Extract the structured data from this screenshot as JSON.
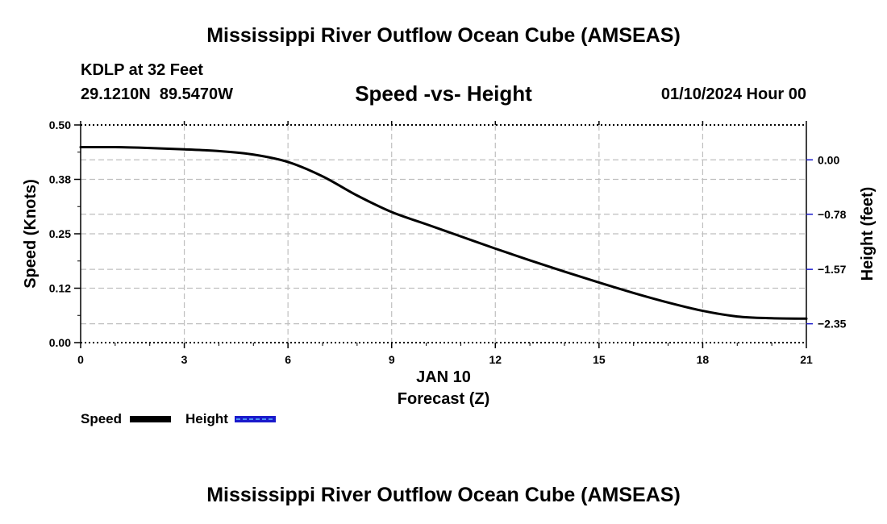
{
  "header": {
    "title": "Mississippi River Outflow Ocean Cube (AMSEAS)",
    "station": "KDLP at 32 Feet",
    "coords": "29.1210N  89.5470W",
    "subtitle": "Speed -vs- Height",
    "date": "01/10/2024 Hour 00"
  },
  "footer": {
    "title": "Mississippi River Outflow Ocean Cube (AMSEAS)"
  },
  "chart_data": {
    "type": "line",
    "title": "Speed -vs- Height",
    "xlabel": "Forecast (Z)",
    "date_label": "JAN 10",
    "ylabel": "Speed (Knots)",
    "y2label": "Height (feet)",
    "xlim": [
      0,
      21
    ],
    "ylim": [
      0,
      0.5
    ],
    "y2lim": [
      -2.62,
      0.5
    ],
    "x_ticks": [
      0,
      3,
      6,
      9,
      12,
      15,
      18,
      21
    ],
    "x_tick_labels": [
      "0",
      "3",
      "6",
      "9",
      "12",
      "15",
      "18",
      "21"
    ],
    "y_ticks": [
      0,
      0.125,
      0.25,
      0.375,
      0.5
    ],
    "y_tick_labels": [
      "0.00",
      "0.12",
      "0.25",
      "0.38",
      "0.50"
    ],
    "y2_ticks": [
      0,
      -0.78,
      -1.57,
      -2.35
    ],
    "y2_tick_labels": [
      "0.00",
      "−0.78",
      "−1.57",
      "−2.35"
    ],
    "grid": true,
    "series": [
      {
        "name": "Speed",
        "color": "#000000",
        "x": [
          0,
          1,
          2,
          3,
          4,
          5,
          6,
          7,
          8,
          9,
          10,
          11,
          12,
          13,
          14,
          15,
          16,
          17,
          18,
          19,
          20,
          21
        ],
        "values": [
          0.449,
          0.449,
          0.447,
          0.444,
          0.44,
          0.432,
          0.415,
          0.382,
          0.338,
          0.3,
          0.272,
          0.244,
          0.216,
          0.189,
          0.163,
          0.138,
          0.114,
          0.092,
          0.073,
          0.06,
          0.056,
          0.055
        ]
      },
      {
        "name": "Height",
        "color": "#1a1acc",
        "x": [],
        "values": []
      }
    ],
    "legend": "bottom-left"
  }
}
